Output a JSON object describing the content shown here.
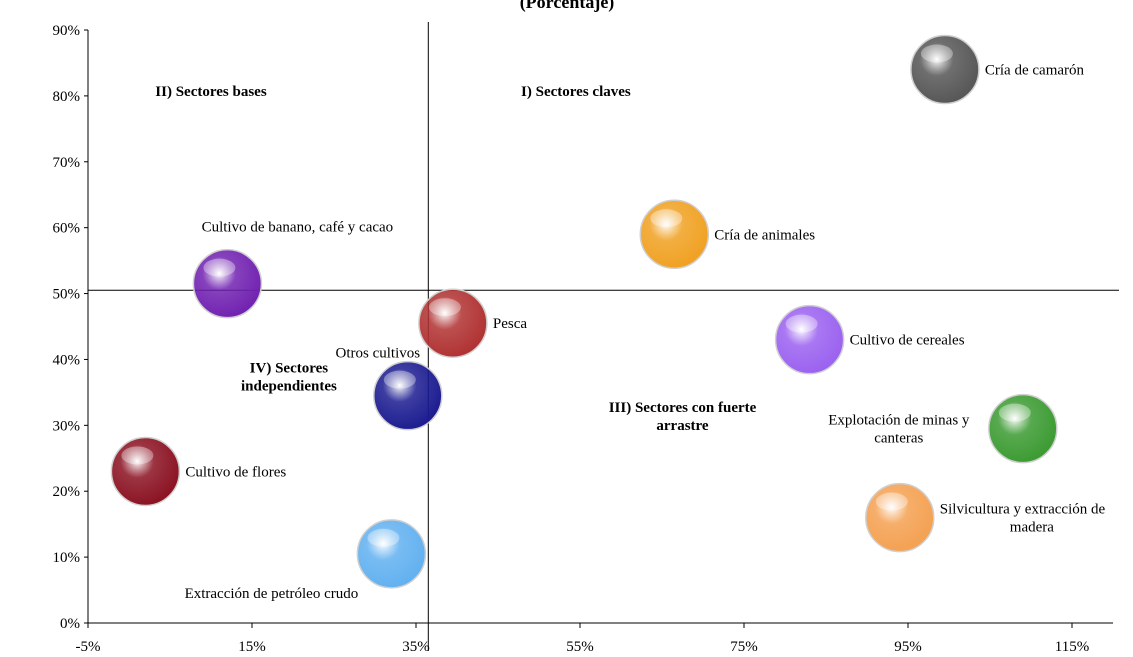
{
  "chart_data": {
    "type": "scatter",
    "title": "(Porcentaje)",
    "xlim": [
      -5,
      120
    ],
    "ylim": [
      0,
      90
    ],
    "x_ticks": [
      "-5%",
      "15%",
      "35%",
      "55%",
      "75%",
      "95%",
      "115%"
    ],
    "x_tick_values": [
      -5,
      15,
      35,
      55,
      75,
      95,
      115
    ],
    "y_ticks": [
      "0%",
      "10%",
      "20%",
      "30%",
      "40%",
      "50%",
      "60%",
      "70%",
      "80%",
      "90%"
    ],
    "y_tick_values": [
      0,
      10,
      20,
      30,
      40,
      50,
      60,
      70,
      80,
      90
    ],
    "grid": false,
    "reference_lines": {
      "x": 36.5,
      "y": 50.5
    },
    "quadrant_labels": [
      {
        "lines": [
          "II) Sectores bases"
        ],
        "x": 10,
        "y": 80
      },
      {
        "lines": [
          "I) Sectores claves"
        ],
        "x": 54.5,
        "y": 80
      },
      {
        "lines": [
          "IV) Sectores",
          "independientes"
        ],
        "x": 19.5,
        "y": 38
      },
      {
        "lines": [
          "III) Sectores con fuerte",
          "arrastre"
        ],
        "x": 67.5,
        "y": 32
      }
    ],
    "points": [
      {
        "label": [
          "Cría de camarón"
        ],
        "x": 99.5,
        "y": 84,
        "color": "#555555",
        "label_pos": "right"
      },
      {
        "label": [
          "Cría de animales"
        ],
        "x": 66.5,
        "y": 59,
        "color": "#f0a020",
        "label_pos": "right"
      },
      {
        "label": [
          "Cultivo de banano, café y cacao"
        ],
        "x": 12,
        "y": 51.5,
        "color": "#7020b0",
        "label_pos": "above"
      },
      {
        "label": [
          "Pesca"
        ],
        "x": 39.5,
        "y": 45.5,
        "color": "#b03030",
        "label_pos": "right"
      },
      {
        "label": [
          "Cultivo de cereales"
        ],
        "x": 83,
        "y": 43,
        "color": "#9a60f0",
        "label_pos": "right"
      },
      {
        "label": [
          "Otros cultivos"
        ],
        "x": 34,
        "y": 34.5,
        "color": "#1a1a90",
        "label_pos": "above-left"
      },
      {
        "label": [
          "Explotación de minas y",
          "canteras"
        ],
        "x": 109,
        "y": 29.5,
        "color": "#3a9a30",
        "label_pos": "left"
      },
      {
        "label": [
          "Cultivo de flores"
        ],
        "x": 2,
        "y": 23,
        "color": "#8a1020",
        "label_pos": "right"
      },
      {
        "label": [
          "Silvicultura y extracción de",
          "madera"
        ],
        "x": 94,
        "y": 16,
        "color": "#f4a050",
        "label_pos": "right"
      },
      {
        "label": [
          "Extracción de petróleo crudo"
        ],
        "x": 32,
        "y": 10.5,
        "color": "#60b0f0",
        "label_pos": "below-left"
      }
    ]
  }
}
